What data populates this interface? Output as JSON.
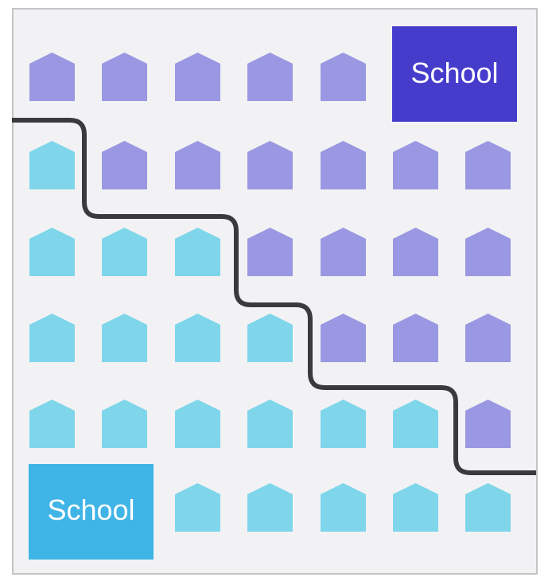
{
  "colors": {
    "district_a_house": "#9a98e2",
    "district_b_house": "#7fd6ea",
    "district_a_school": "#463ccc",
    "district_b_school": "#3fb4e6",
    "boundary": "#3a3a3c",
    "background": "#f2f2f4"
  },
  "schools": [
    {
      "label": "School",
      "district": "a"
    },
    {
      "label": "School",
      "district": "b"
    }
  ],
  "grid": [
    [
      "a",
      "a",
      "a",
      "a",
      "a",
      "S",
      "S"
    ],
    [
      "b",
      "a",
      "a",
      "a",
      "a",
      "a",
      "a"
    ],
    [
      "b",
      "b",
      "b",
      "a",
      "a",
      "a",
      "a"
    ],
    [
      "b",
      "b",
      "b",
      "b",
      "a",
      "a",
      "a"
    ],
    [
      "b",
      "b",
      "b",
      "b",
      "b",
      "b",
      "a"
    ],
    [
      "S",
      "S",
      "b",
      "b",
      "b",
      "b",
      "b"
    ]
  ]
}
